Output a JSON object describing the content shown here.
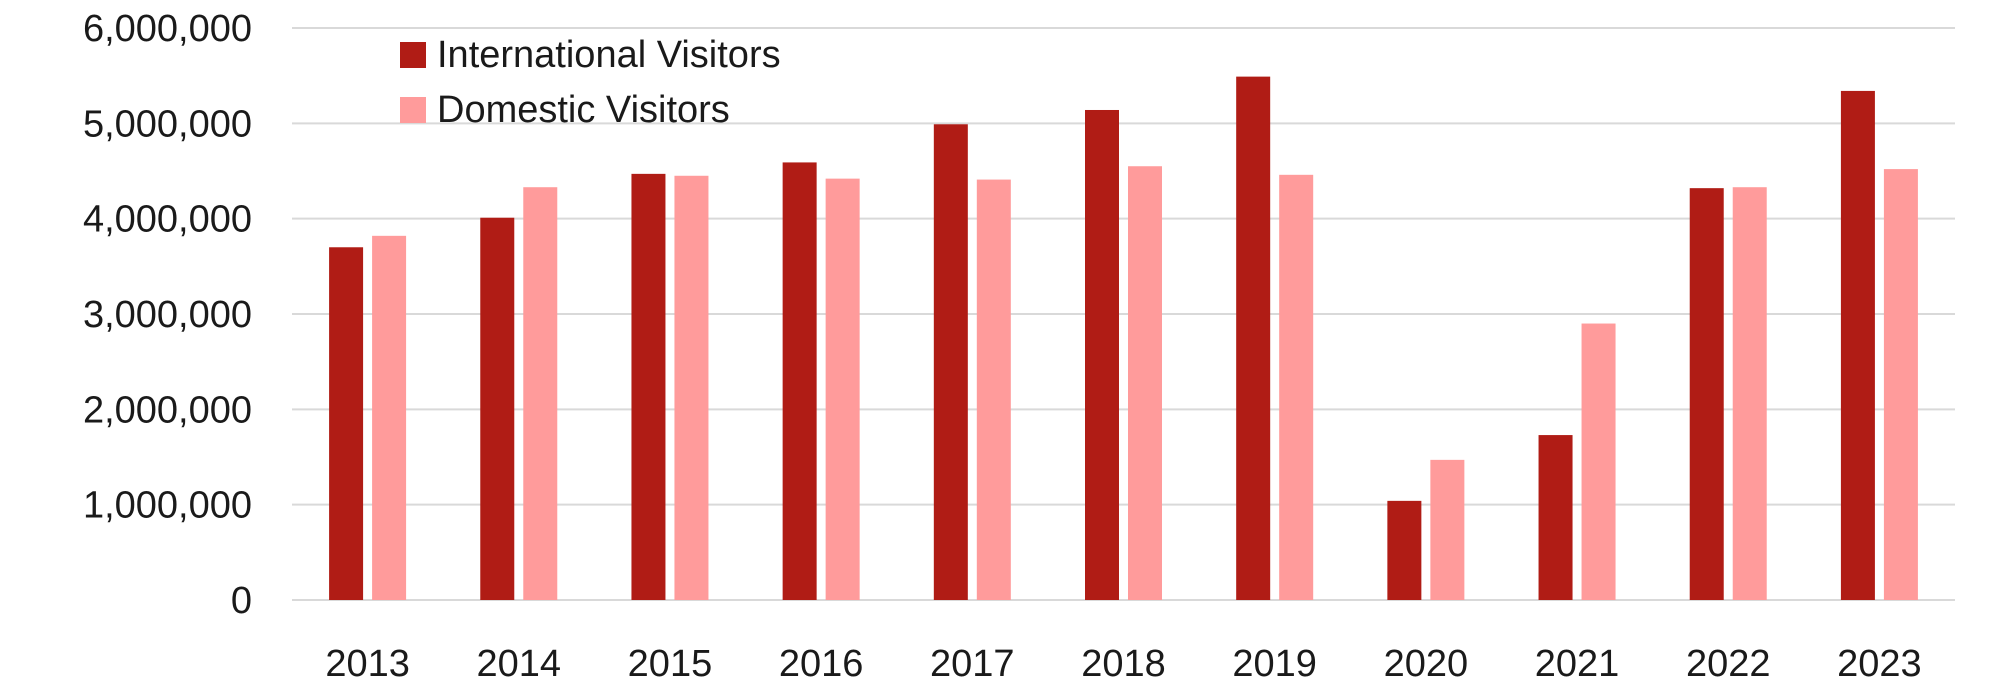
{
  "chart_data": {
    "type": "bar",
    "title": "",
    "xlabel": "",
    "ylabel": "",
    "categories": [
      "2013",
      "2014",
      "2015",
      "2016",
      "2017",
      "2018",
      "2019",
      "2020",
      "2021",
      "2022",
      "2023"
    ],
    "series": [
      {
        "name": "International Visitors",
        "color": "#b01c15",
        "values": [
          3700000,
          4010000,
          4470000,
          4590000,
          4990000,
          5140000,
          5490000,
          1040000,
          1730000,
          4320000,
          5340000
        ]
      },
      {
        "name": "Domestic Visitors",
        "color": "#ff9b9b",
        "values": [
          3820000,
          4330000,
          4450000,
          4420000,
          4410000,
          4550000,
          4460000,
          1470000,
          2900000,
          4330000,
          4520000
        ]
      }
    ],
    "yticks": [
      "0",
      "1,000,000",
      "2,000,000",
      "3,000,000",
      "4,000,000",
      "5,000,000",
      "6,000,000"
    ],
    "ylim": [
      0,
      6000000
    ],
    "grid": true,
    "legend_position": "top-left"
  }
}
